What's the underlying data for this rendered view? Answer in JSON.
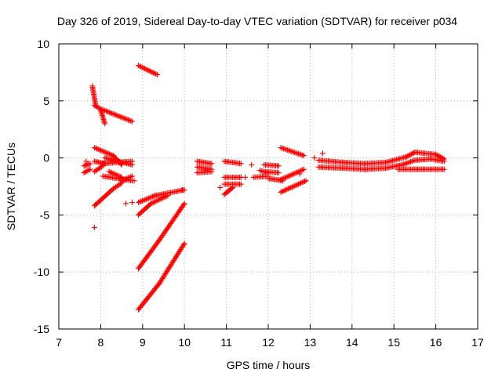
{
  "chart_data": {
    "type": "scatter",
    "title": "Day 326 of 2019, Sidereal Day-to-day VTEC variation (SDTVAR) for receiver p034",
    "xlabel": "GPS time / hours",
    "ylabel": "SDTVAR / TECUs",
    "xlim": [
      7,
      17
    ],
    "ylim": [
      -15,
      10
    ],
    "xticks": [
      "7",
      "8",
      "9",
      "10",
      "11",
      "12",
      "13",
      "14",
      "15",
      "16",
      "17"
    ],
    "yticks": [
      "10",
      "5",
      "0",
      "-5",
      "-10",
      "-15"
    ],
    "grid": true,
    "marker": "plus",
    "colors": {
      "series": "#ff0000",
      "grid": "#a0a0a0",
      "axes": "#000000"
    },
    "series": [
      {
        "name": "seg-a",
        "segments": [
          [
            7.6,
            -0.7,
            7.75,
            -0.5
          ],
          [
            7.6,
            -1.3,
            7.75,
            -1.0
          ]
        ]
      },
      {
        "name": "seg-b",
        "segments": [
          [
            7.8,
            6.3,
            7.88,
            4.6
          ],
          [
            7.85,
            4.6,
            8.0,
            4.3
          ],
          [
            8.0,
            4.2,
            8.1,
            3.0
          ]
        ]
      },
      {
        "name": "seg-c",
        "segments": [
          [
            7.85,
            -0.3,
            8.1,
            -0.5
          ],
          [
            7.85,
            -1.2,
            8.05,
            -0.7
          ],
          [
            8.05,
            -0.5,
            8.75,
            -0.3
          ],
          [
            8.1,
            0.0,
            8.75,
            -0.6
          ]
        ]
      },
      {
        "name": "seg-d",
        "segments": [
          [
            8.0,
            4.3,
            8.2,
            4.0
          ],
          [
            8.2,
            4.0,
            8.75,
            3.2
          ]
        ]
      },
      {
        "name": "seg-e",
        "segments": [
          [
            7.85,
            0.9,
            8.3,
            0.2
          ],
          [
            8.3,
            0.2,
            8.5,
            -0.6
          ]
        ]
      },
      {
        "name": "seg-f",
        "segments": [
          [
            7.85,
            -4.2,
            8.3,
            -2.7
          ],
          [
            8.3,
            -2.7,
            8.5,
            -2.2
          ],
          [
            8.5,
            -2.0,
            8.75,
            -1.6
          ]
        ]
      },
      {
        "name": "seg-g",
        "segments": [
          [
            8.05,
            -1.6,
            8.75,
            -2.0
          ],
          [
            8.2,
            -1.2,
            8.5,
            -1.7
          ]
        ]
      },
      {
        "name": "seg-h",
        "segments": [
          [
            8.9,
            8.1,
            9.35,
            7.3
          ]
        ]
      },
      {
        "name": "seg-i",
        "segments": [
          [
            8.9,
            -3.9,
            9.3,
            -3.3
          ],
          [
            9.3,
            -3.3,
            10.0,
            -2.8
          ]
        ]
      },
      {
        "name": "seg-j",
        "segments": [
          [
            8.9,
            -5.0,
            9.2,
            -4.0
          ],
          [
            9.2,
            -4.0,
            9.6,
            -3.3
          ]
        ]
      },
      {
        "name": "seg-k",
        "segments": [
          [
            8.9,
            -9.7,
            9.4,
            -7.2
          ],
          [
            9.4,
            -7.2,
            10.0,
            -4.0
          ]
        ]
      },
      {
        "name": "seg-l",
        "segments": [
          [
            8.9,
            -13.3,
            9.4,
            -11.0
          ],
          [
            9.4,
            -11.0,
            10.0,
            -7.5
          ]
        ]
      },
      {
        "name": "seg-m",
        "segments": [
          [
            10.3,
            -0.3,
            10.65,
            -0.5
          ],
          [
            10.3,
            -0.8,
            10.65,
            -1.0
          ],
          [
            10.3,
            -1.3,
            10.65,
            -1.2
          ]
        ]
      },
      {
        "name": "seg-n",
        "segments": [
          [
            10.95,
            -0.3,
            11.35,
            -0.5
          ],
          [
            10.95,
            -1.7,
            11.35,
            -1.7
          ],
          [
            10.95,
            -2.3,
            11.35,
            -2.3
          ],
          [
            10.95,
            -3.2,
            11.15,
            -2.6
          ]
        ]
      },
      {
        "name": "seg-o",
        "segments": [
          [
            11.65,
            -1.7,
            12.0,
            -1.6
          ],
          [
            11.8,
            -1.1,
            12.0,
            -1.3
          ],
          [
            12.0,
            -1.8,
            12.35,
            -2.0
          ]
        ]
      },
      {
        "name": "seg-p",
        "segments": [
          [
            11.9,
            -0.6,
            12.25,
            -0.7
          ],
          [
            11.9,
            -1.2,
            12.25,
            -1.3
          ]
        ]
      },
      {
        "name": "seg-q",
        "segments": [
          [
            12.3,
            0.9,
            12.85,
            0.2
          ]
        ]
      },
      {
        "name": "seg-r",
        "segments": [
          [
            12.3,
            -1.9,
            12.85,
            -1.0
          ]
        ]
      },
      {
        "name": "seg-s",
        "segments": [
          [
            12.3,
            -3.0,
            12.9,
            -2.0
          ]
        ]
      },
      {
        "name": "seg-t",
        "segments": [
          [
            13.2,
            -0.2,
            13.8,
            -0.4
          ],
          [
            13.8,
            -0.4,
            14.3,
            -0.5
          ],
          [
            14.3,
            -0.5,
            14.8,
            -0.4
          ],
          [
            14.8,
            -0.4,
            15.3,
            0.1
          ],
          [
            15.3,
            0.1,
            15.5,
            0.5
          ],
          [
            15.5,
            0.5,
            16.0,
            0.3
          ],
          [
            16.0,
            0.3,
            16.2,
            -0.1
          ]
        ]
      },
      {
        "name": "seg-u",
        "segments": [
          [
            13.2,
            -0.8,
            13.8,
            -0.9
          ],
          [
            13.8,
            -0.9,
            14.3,
            -1.0
          ],
          [
            14.3,
            -1.0,
            14.8,
            -0.9
          ],
          [
            14.8,
            -0.9,
            15.2,
            -0.6
          ],
          [
            15.2,
            -0.6,
            15.5,
            -0.2
          ],
          [
            15.5,
            -0.2,
            15.9,
            -0.1
          ],
          [
            15.9,
            -0.1,
            16.2,
            -0.3
          ]
        ]
      },
      {
        "name": "seg-v",
        "segments": [
          [
            15.1,
            -1.0,
            15.5,
            -1.0
          ],
          [
            15.5,
            -1.0,
            16.2,
            -1.0
          ]
        ]
      }
    ],
    "scattered_points": [
      [
        7.85,
        -6.1
      ],
      [
        8.75,
        -3.9
      ],
      [
        8.6,
        -4.0
      ],
      [
        7.65,
        -0.3
      ],
      [
        11.6,
        -0.6
      ],
      [
        11.45,
        -1.7
      ],
      [
        10.85,
        -2.6
      ],
      [
        11.05,
        -2.9
      ],
      [
        12.75,
        -1.4
      ],
      [
        13.3,
        0.4
      ],
      [
        13.1,
        0.0
      ],
      [
        8.8,
        -2.0
      ],
      [
        9.95,
        -2.8
      ]
    ]
  }
}
